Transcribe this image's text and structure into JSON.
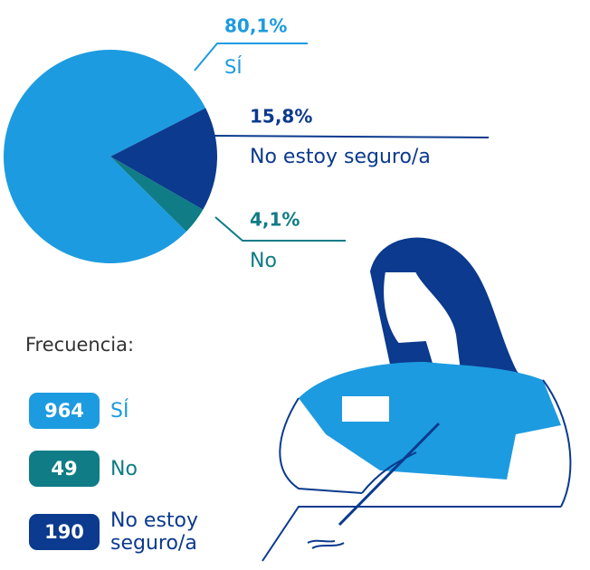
{
  "chart_data": {
    "type": "pie",
    "categories": [
      "SÍ",
      "No estoy seguro/a",
      "No"
    ],
    "values": [
      80.1,
      15.8,
      4.1
    ],
    "value_labels": [
      "80,1%",
      "15,8%",
      "4,1%"
    ],
    "colors": [
      "#1d9be0",
      "#0b3a8e",
      "#0f7c86"
    ],
    "frequencies": {
      "title": "Frecuencia:",
      "items": [
        {
          "count": 964,
          "label": "SÍ",
          "color": "#1d9be0"
        },
        {
          "count": 49,
          "label": "No",
          "color": "#0f7c86"
        },
        {
          "count": 190,
          "label": "No estoy seguro/a",
          "color": "#0b3a8e"
        }
      ]
    }
  }
}
